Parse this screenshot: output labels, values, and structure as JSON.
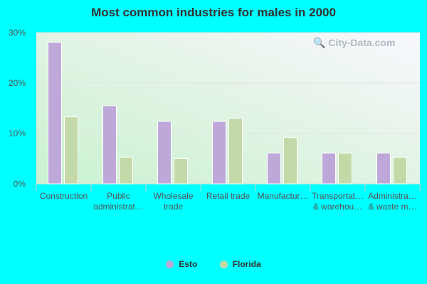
{
  "chart_data": {
    "type": "bar",
    "title": "Most common industries for males in 2000",
    "categories": [
      [
        "Construction"
      ],
      [
        "Public",
        "administrat…"
      ],
      [
        "Wholesale",
        "trade"
      ],
      [
        "Retail trade"
      ],
      [
        "Manufactur…"
      ],
      [
        "Transportat…",
        "& warehou…"
      ],
      [
        "Administra…",
        "& waste m…"
      ]
    ],
    "series": [
      {
        "name": "Esto",
        "color": "#bea8d9",
        "values": [
          28.1,
          15.5,
          12.4,
          12.4,
          6.1,
          6.1,
          6.1
        ]
      },
      {
        "name": "Florida",
        "color": "#c4d9a8",
        "values": [
          13.3,
          5.3,
          5.0,
          13.0,
          9.2,
          6.1,
          5.3
        ]
      }
    ],
    "ylim": [
      0,
      30
    ],
    "yticks": [
      "0%",
      "10%",
      "20%",
      "30%"
    ],
    "grid": true,
    "legend": "bottom"
  },
  "watermark": "City-Data.com"
}
